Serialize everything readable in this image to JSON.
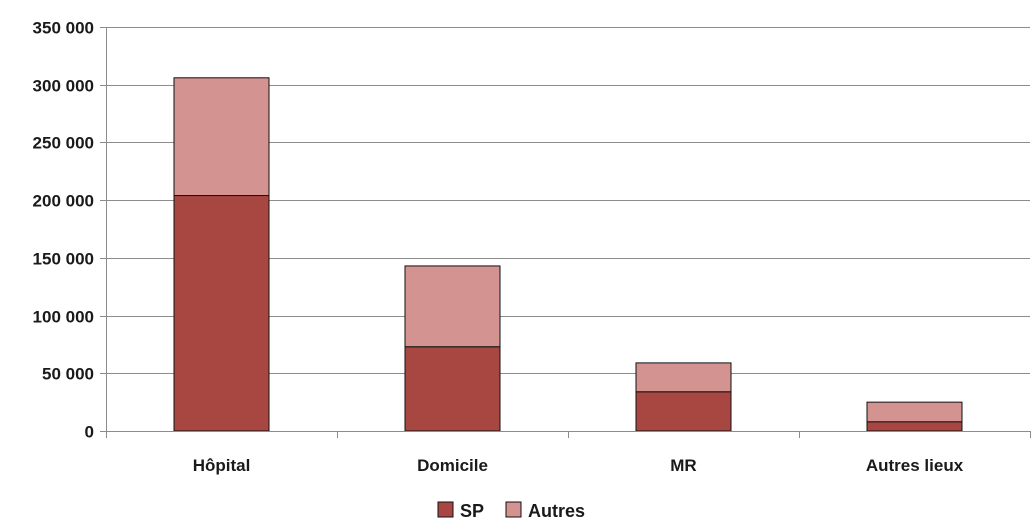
{
  "chart_data": {
    "type": "bar",
    "stacked": true,
    "categories": [
      "Hôpital",
      "Domicile",
      "MR",
      "Autres lieux"
    ],
    "series": [
      {
        "name": "SP",
        "color": "#a84642",
        "values": [
          204000,
          73000,
          34000,
          8000
        ]
      },
      {
        "name": "Autres",
        "color": "#d39391",
        "values": [
          102000,
          70000,
          25000,
          17000
        ]
      }
    ],
    "ylim": [
      0,
      350000
    ],
    "yticks": [
      0,
      50000,
      100000,
      150000,
      200000,
      250000,
      300000,
      350000
    ],
    "ytick_labels": [
      "0",
      "50 000",
      "100 000",
      "150 000",
      "200 000",
      "250 000",
      "300 000",
      "350 000"
    ],
    "grid": true,
    "legend_position": "bottom",
    "title": "",
    "xlabel": "",
    "ylabel": ""
  }
}
